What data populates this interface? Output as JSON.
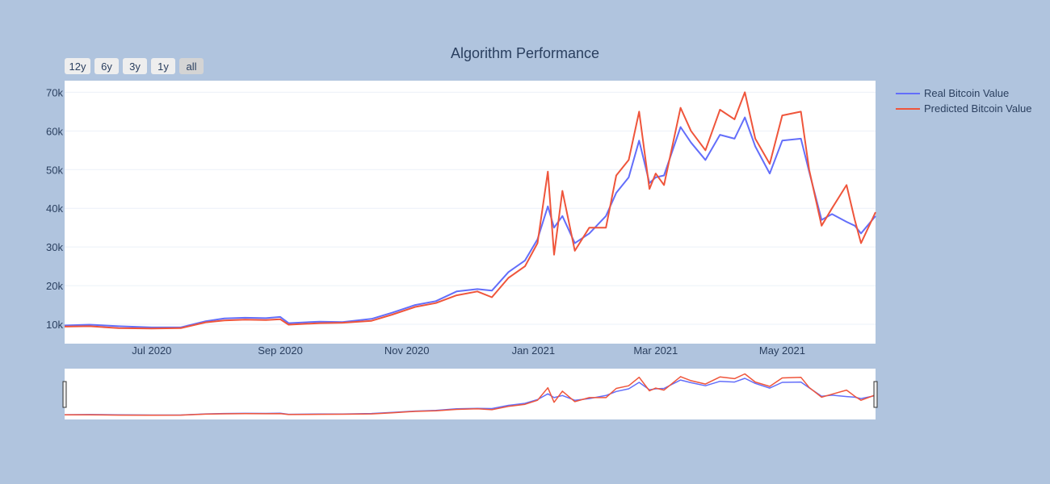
{
  "chart_data": {
    "type": "line",
    "title": "Algorithm Performance",
    "xlabel": "",
    "ylabel": "",
    "x_range": [
      "2020-05-20",
      "2021-06-15"
    ],
    "ylim": [
      5000,
      73000
    ],
    "x_ticks": [
      {
        "label": "Jul 2020",
        "date": "2020-07-01"
      },
      {
        "label": "Sep 2020",
        "date": "2020-09-01"
      },
      {
        "label": "Nov 2020",
        "date": "2020-11-01"
      },
      {
        "label": "Jan 2021",
        "date": "2021-01-01"
      },
      {
        "label": "Mar 2021",
        "date": "2021-03-01"
      },
      {
        "label": "May 2021",
        "date": "2021-05-01"
      }
    ],
    "y_ticks": [
      {
        "label": "10k",
        "value": 10000
      },
      {
        "label": "20k",
        "value": 20000
      },
      {
        "label": "30k",
        "value": 30000
      },
      {
        "label": "40k",
        "value": 40000
      },
      {
        "label": "50k",
        "value": 50000
      },
      {
        "label": "60k",
        "value": 60000
      },
      {
        "label": "70k",
        "value": 70000
      }
    ],
    "legend_position": "top-right",
    "grid": true,
    "series": [
      {
        "name": "Real Bitcoin Value",
        "color": "#636efa",
        "points": [
          [
            "2020-05-20",
            9700
          ],
          [
            "2020-06-01",
            9900
          ],
          [
            "2020-06-15",
            9500
          ],
          [
            "2020-07-01",
            9200
          ],
          [
            "2020-07-15",
            9200
          ],
          [
            "2020-07-27",
            10800
          ],
          [
            "2020-08-05",
            11500
          ],
          [
            "2020-08-15",
            11700
          ],
          [
            "2020-08-25",
            11600
          ],
          [
            "2020-09-01",
            11900
          ],
          [
            "2020-09-05",
            10300
          ],
          [
            "2020-09-20",
            10700
          ],
          [
            "2020-10-01",
            10600
          ],
          [
            "2020-10-15",
            11400
          ],
          [
            "2020-10-25",
            13000
          ],
          [
            "2020-11-05",
            15000
          ],
          [
            "2020-11-15",
            16000
          ],
          [
            "2020-11-25",
            18500
          ],
          [
            "2020-12-05",
            19100
          ],
          [
            "2020-12-12",
            18700
          ],
          [
            "2020-12-20",
            23500
          ],
          [
            "2020-12-28",
            26500
          ],
          [
            "2021-01-03",
            32000
          ],
          [
            "2021-01-08",
            40500
          ],
          [
            "2021-01-11",
            35000
          ],
          [
            "2021-01-15",
            38000
          ],
          [
            "2021-01-21",
            31000
          ],
          [
            "2021-01-28",
            33500
          ],
          [
            "2021-02-05",
            38000
          ],
          [
            "2021-02-10",
            44000
          ],
          [
            "2021-02-16",
            48000
          ],
          [
            "2021-02-21",
            57500
          ],
          [
            "2021-02-26",
            46500
          ],
          [
            "2021-03-01",
            48000
          ],
          [
            "2021-03-05",
            48500
          ],
          [
            "2021-03-13",
            61000
          ],
          [
            "2021-03-18",
            57000
          ],
          [
            "2021-03-25",
            52500
          ],
          [
            "2021-04-01",
            59000
          ],
          [
            "2021-04-08",
            58000
          ],
          [
            "2021-04-13",
            63500
          ],
          [
            "2021-04-18",
            56000
          ],
          [
            "2021-04-25",
            49000
          ],
          [
            "2021-05-01",
            57500
          ],
          [
            "2021-05-10",
            58000
          ],
          [
            "2021-05-14",
            49500
          ],
          [
            "2021-05-20",
            37000
          ],
          [
            "2021-05-25",
            38500
          ],
          [
            "2021-06-01",
            36500
          ],
          [
            "2021-06-05",
            35500
          ],
          [
            "2021-06-08",
            33500
          ],
          [
            "2021-06-15",
            38000
          ]
        ]
      },
      {
        "name": "Predicted Bitcoin Value",
        "color": "#ef553b",
        "points": [
          [
            "2020-05-20",
            9400
          ],
          [
            "2020-06-01",
            9500
          ],
          [
            "2020-06-15",
            9000
          ],
          [
            "2020-07-01",
            8900
          ],
          [
            "2020-07-15",
            9000
          ],
          [
            "2020-07-27",
            10500
          ],
          [
            "2020-08-05",
            11000
          ],
          [
            "2020-08-15",
            11200
          ],
          [
            "2020-08-25",
            11100
          ],
          [
            "2020-09-01",
            11300
          ],
          [
            "2020-09-05",
            9900
          ],
          [
            "2020-09-20",
            10300
          ],
          [
            "2020-10-01",
            10400
          ],
          [
            "2020-10-15",
            10900
          ],
          [
            "2020-10-25",
            12500
          ],
          [
            "2020-11-05",
            14500
          ],
          [
            "2020-11-15",
            15500
          ],
          [
            "2020-11-25",
            17500
          ],
          [
            "2020-12-05",
            18500
          ],
          [
            "2020-12-12",
            17000
          ],
          [
            "2020-12-20",
            22000
          ],
          [
            "2020-12-28",
            25000
          ],
          [
            "2021-01-03",
            31000
          ],
          [
            "2021-01-08",
            49500
          ],
          [
            "2021-01-11",
            28000
          ],
          [
            "2021-01-15",
            44500
          ],
          [
            "2021-01-21",
            29000
          ],
          [
            "2021-01-28",
            35000
          ],
          [
            "2021-02-05",
            35000
          ],
          [
            "2021-02-10",
            48500
          ],
          [
            "2021-02-16",
            52500
          ],
          [
            "2021-02-21",
            65000
          ],
          [
            "2021-02-26",
            45000
          ],
          [
            "2021-03-01",
            49000
          ],
          [
            "2021-03-05",
            46000
          ],
          [
            "2021-03-13",
            66000
          ],
          [
            "2021-03-18",
            60000
          ],
          [
            "2021-03-25",
            55000
          ],
          [
            "2021-04-01",
            65500
          ],
          [
            "2021-04-08",
            63000
          ],
          [
            "2021-04-13",
            70000
          ],
          [
            "2021-04-18",
            58000
          ],
          [
            "2021-04-25",
            51500
          ],
          [
            "2021-05-01",
            64000
          ],
          [
            "2021-05-10",
            65000
          ],
          [
            "2021-05-14",
            50000
          ],
          [
            "2021-05-20",
            35500
          ],
          [
            "2021-05-25",
            40000
          ],
          [
            "2021-06-01",
            46000
          ],
          [
            "2021-06-05",
            37000
          ],
          [
            "2021-06-08",
            31000
          ],
          [
            "2021-06-15",
            39000
          ]
        ]
      }
    ]
  },
  "range_selector": {
    "buttons": [
      {
        "label": "12y",
        "active": false
      },
      {
        "label": "6y",
        "active": false
      },
      {
        "label": "3y",
        "active": false
      },
      {
        "label": "1y",
        "active": false
      },
      {
        "label": "all",
        "active": true
      }
    ]
  }
}
